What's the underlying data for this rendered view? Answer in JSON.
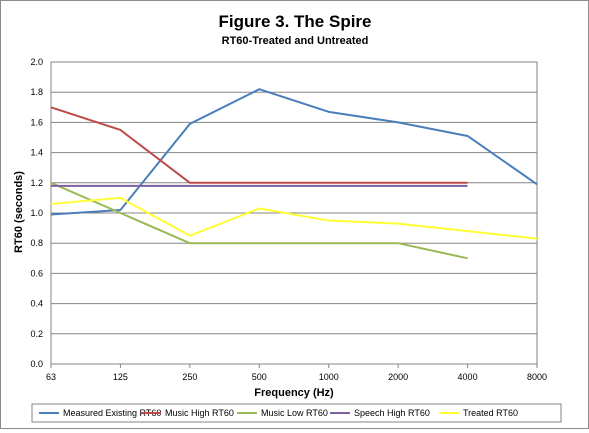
{
  "chart_data": {
    "type": "line",
    "title": "Figure 3. The Spire",
    "subtitle": "RT60-Treated and Untreated",
    "xlabel": "Frequency (Hz)",
    "ylabel": "RT60 (seconds)",
    "categories": [
      "63",
      "125",
      "250",
      "500",
      "1000",
      "2000",
      "4000",
      "8000"
    ],
    "ylim": [
      0,
      2.0
    ],
    "yticks": [
      "0.0",
      "0.2",
      "0.4",
      "0.6",
      "0.8",
      "1.0",
      "1.2",
      "1.4",
      "1.6",
      "1.8",
      "2.0"
    ],
    "grid": true,
    "legend": "bottom",
    "series": [
      {
        "name": "Measured Existing RT60",
        "color": "#4a7ebb",
        "values": [
          0.99,
          1.02,
          1.59,
          1.82,
          1.67,
          1.6,
          1.51,
          1.19
        ]
      },
      {
        "name": "Music High RT60",
        "color": "#be4b48",
        "values": [
          1.7,
          1.55,
          1.2,
          1.2,
          1.2,
          1.2,
          1.2,
          null
        ]
      },
      {
        "name": "Music Low RT60",
        "color": "#98b954",
        "values": [
          1.2,
          1.0,
          0.8,
          0.8,
          0.8,
          0.8,
          0.7,
          null
        ]
      },
      {
        "name": "Speech High RT60",
        "color": "#7d60a0",
        "values": [
          1.18,
          1.18,
          1.18,
          1.18,
          1.18,
          1.18,
          1.18,
          null
        ]
      },
      {
        "name": "Treated RT60",
        "color": "#ffff33",
        "values": [
          1.06,
          1.1,
          0.85,
          1.03,
          0.95,
          0.93,
          0.88,
          0.83
        ]
      }
    ]
  }
}
